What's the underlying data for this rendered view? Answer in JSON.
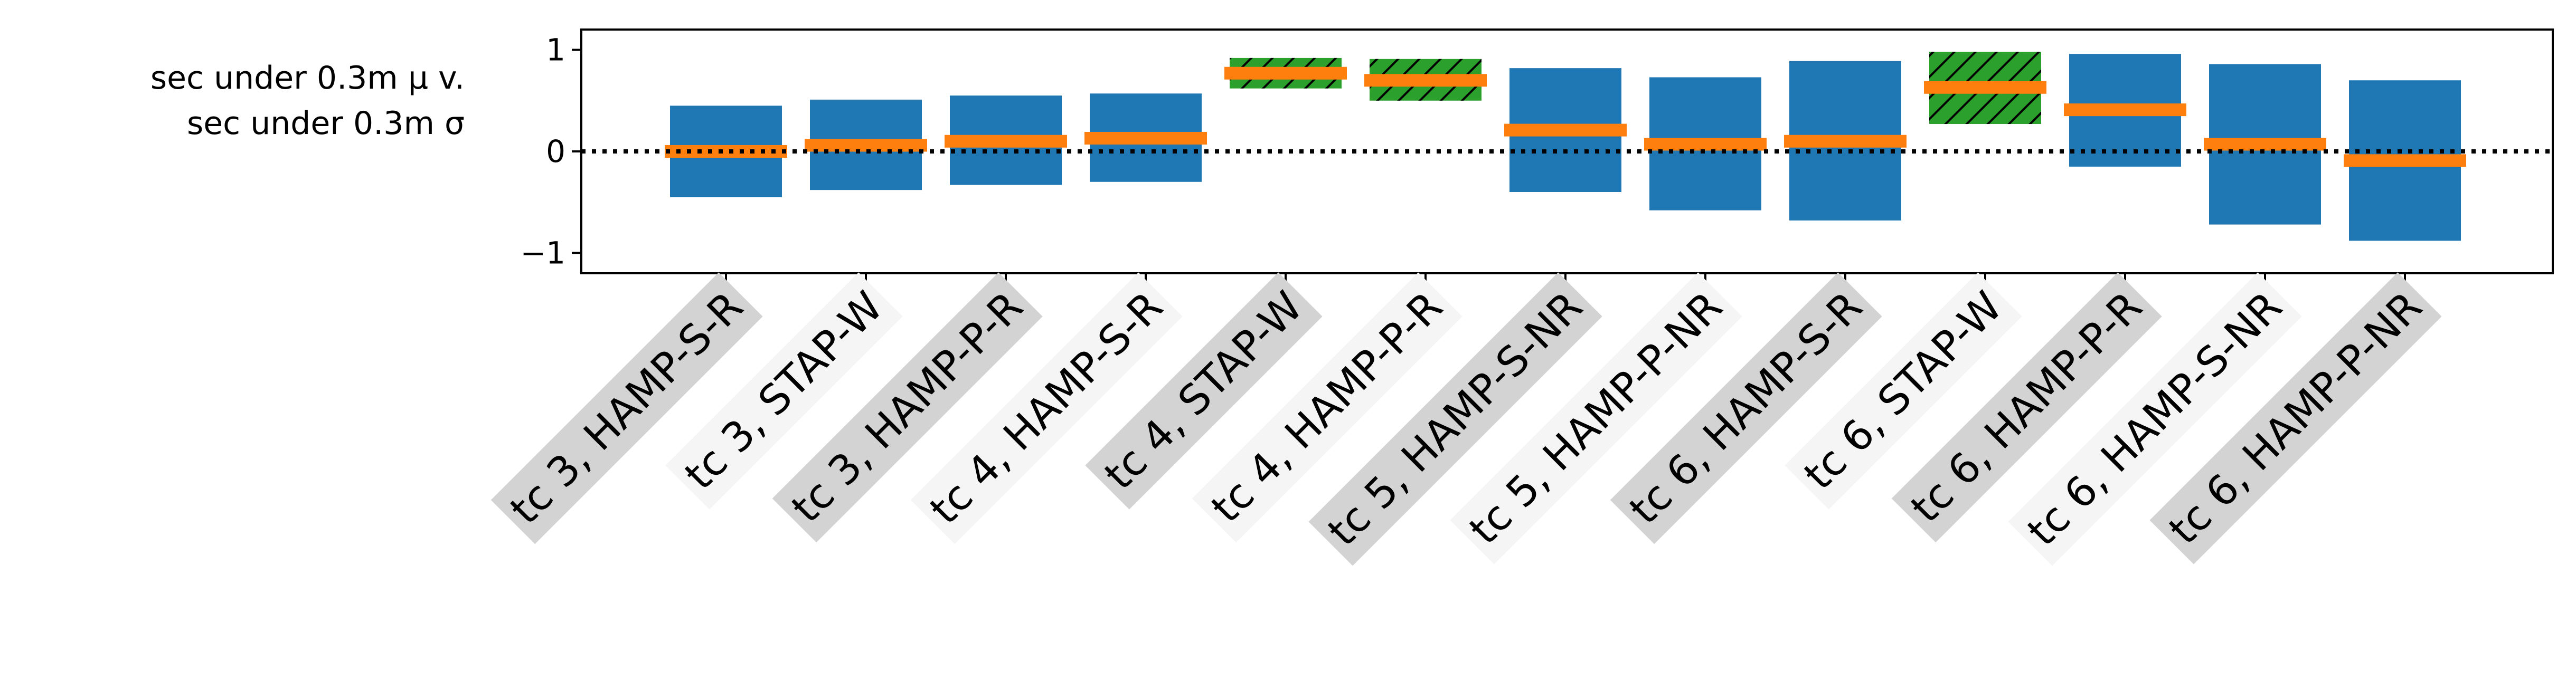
{
  "chart_data": {
    "type": "bar",
    "ylabel_lines": [
      "sec under 0.3m μ v.",
      "sec under 0.3m σ"
    ],
    "ylim": [
      -1.2,
      1.2
    ],
    "yticks": [
      {
        "value": -1,
        "label": "−1"
      },
      {
        "value": 0,
        "label": "0"
      },
      {
        "value": 1,
        "label": "1"
      }
    ],
    "reference_line": {
      "value": 0,
      "style": "dotted"
    },
    "grid": false,
    "colors": {
      "range_bar": "#1f77b4",
      "highlight_bar": "#2ca02c",
      "mean_marker": "#ff7f0e",
      "label_bg_dark": "#d3d3d3",
      "label_bg_light": "#f5f5f5"
    },
    "categories": [
      "tc 3, HAMP-S-R",
      "tc 3, STAP-W",
      "tc 3, HAMP-P-R",
      "tc 4, HAMP-S-R",
      "tc 4, STAP-W",
      "tc 4, HAMP-P-R",
      "tc 5, HAMP-S-NR",
      "tc 5, HAMP-P-NR",
      "tc 6, HAMP-S-R",
      "tc 6, STAP-W",
      "tc 6, HAMP-P-R",
      "tc 6, HAMP-S-NR",
      "tc 6, HAMP-P-NR"
    ],
    "bars": [
      {
        "low": -0.45,
        "high": 0.45,
        "mean": 0.0,
        "hatched": false
      },
      {
        "low": -0.38,
        "high": 0.51,
        "mean": 0.06,
        "hatched": false
      },
      {
        "low": -0.33,
        "high": 0.55,
        "mean": 0.1,
        "hatched": false
      },
      {
        "low": -0.3,
        "high": 0.57,
        "mean": 0.13,
        "hatched": false
      },
      {
        "low": 0.62,
        "high": 0.92,
        "mean": 0.77,
        "hatched": true
      },
      {
        "low": 0.5,
        "high": 0.91,
        "mean": 0.7,
        "hatched": true
      },
      {
        "low": -0.4,
        "high": 0.82,
        "mean": 0.21,
        "hatched": false
      },
      {
        "low": -0.58,
        "high": 0.73,
        "mean": 0.07,
        "hatched": false
      },
      {
        "low": -0.68,
        "high": 0.89,
        "mean": 0.1,
        "hatched": false
      },
      {
        "low": 0.27,
        "high": 0.98,
        "mean": 0.63,
        "hatched": true
      },
      {
        "low": -0.15,
        "high": 0.96,
        "mean": 0.41,
        "hatched": false
      },
      {
        "low": -0.72,
        "high": 0.86,
        "mean": 0.07,
        "hatched": false
      },
      {
        "low": -0.88,
        "high": 0.7,
        "mean": -0.09,
        "hatched": false
      }
    ]
  }
}
